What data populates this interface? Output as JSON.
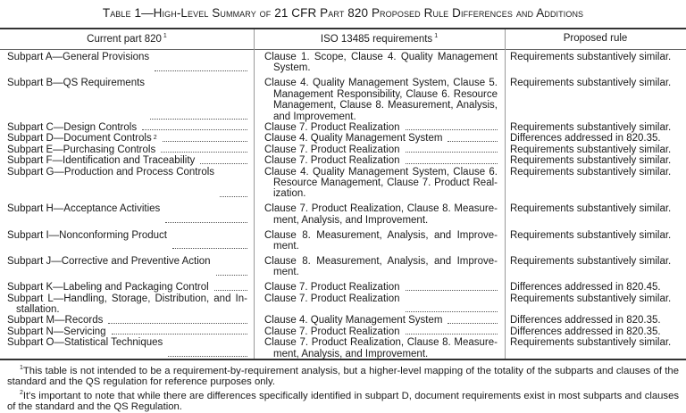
{
  "title": "Table 1—High-Level Summary of 21 CFR Part 820 Proposed Rule Differences and Additions",
  "headers": [
    {
      "label": "Current part 820",
      "note": "1"
    },
    {
      "label": "ISO 13485 requirements",
      "note": "1"
    },
    {
      "label": "Proposed rule",
      "note": ""
    }
  ],
  "rows": [
    {
      "part": "Subpart A—General Provisions",
      "iso": "Clause 1. Scope, Clause 4. Quality Management System.",
      "rule": "Requirements substantively similar."
    },
    {
      "part": "Subpart B—QS Requirements",
      "iso": "Clause 4. Quality Management System, Clause 5. Management Responsibility, Clause 6. Resource Management, Clause 8. Measurement, Analysis, and Improvement.",
      "rule": "Requirements substantively similar."
    },
    {
      "part": "Subpart C—Design Controls",
      "iso": "Clause 7. Product Realization",
      "rule": "Requirements substantively similar."
    },
    {
      "part": "Subpart D—Document Controls",
      "part_note": "2",
      "iso": "Clause 4. Quality Management System",
      "rule": "Differences addressed in 820.35."
    },
    {
      "part": "Subpart E—Purchasing Controls",
      "iso": "Clause 7. Product Realization",
      "rule": "Requirements substantively similar."
    },
    {
      "part": "Subpart F—Identification and Traceability",
      "iso": "Clause 7. Product Realization",
      "rule": "Requirements substantively similar."
    },
    {
      "part": "Subpart G—Production and Process Controls",
      "iso": "Clause 4. Quality Management System, Clause 6. Resource Management, Clause 7. Product Real­ization.",
      "rule": "Requirements substantively similar."
    },
    {
      "part": "Subpart H—Acceptance Activities",
      "iso": "Clause 7. Product Realization, Clause 8. Measure­ment, Analysis, and Improvement.",
      "rule": "Requirements substantively similar."
    },
    {
      "part": "Subpart I—Nonconforming Product",
      "iso": "Clause 8. Measurement, Analysis, and Improve­ment.",
      "rule": "Requirements substantively similar."
    },
    {
      "part": "Subpart J—Corrective and Preventive Action",
      "iso": "Clause 8. Measurement, Analysis, and Improve­ment.",
      "rule": "Requirements substantively similar."
    },
    {
      "part": "Subpart K—Labeling and Packaging Control",
      "iso": "Clause 7. Product Realization",
      "rule": "Differences addressed in 820.45."
    },
    {
      "part": "Subpart L—Handling, Storage, Distribution, and In­stallation.",
      "iso": "Clause 7. Product Realization",
      "rule": "Requirements substantively similar."
    },
    {
      "part": "Subpart M—Records",
      "iso": "Clause 4. Quality Management System",
      "rule": "Differences addressed in 820.35."
    },
    {
      "part": "Subpart N—Servicing",
      "iso": "Clause 7. Product Realization",
      "rule": "Differences addressed in 820.35."
    },
    {
      "part": "Subpart O—Statistical Techniques",
      "iso": "Clause 7. Product Realization, Clause 8. Measure­ment, Analysis, and Improvement.",
      "rule": "Requirements substantively similar."
    }
  ],
  "footnotes": [
    {
      "mark": "1",
      "text": "This table is not intended to be a requirement-by-requirement analysis, but a higher-level mapping of the totality of the subparts and clauses of the standard and the QS regulation for reference purposes only."
    },
    {
      "mark": "2",
      "text": "It's important to note that while there are differences specifically identified in subpart D, document requirements exist in most subparts and clauses of the standard and the QS Regulation."
    }
  ]
}
